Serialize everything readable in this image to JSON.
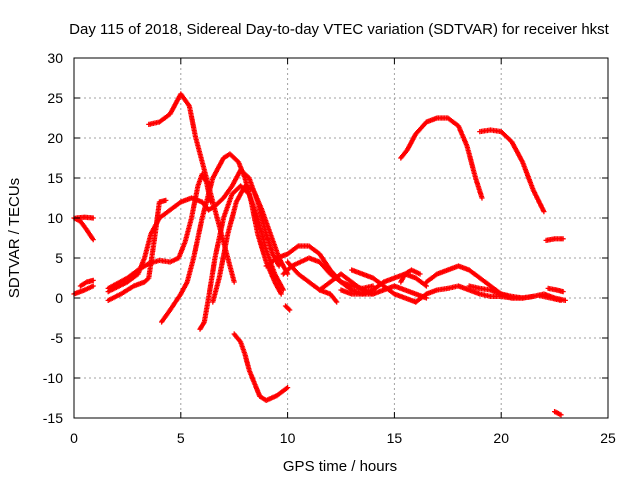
{
  "chart_data": {
    "type": "scatter",
    "title": "Day 115 of 2018, Sidereal Day-to-day VTEC variation (SDTVAR) for receiver hkst",
    "xlabel": "GPS time / hours",
    "ylabel": "SDTVAR / TECUs",
    "xlim": [
      0,
      25
    ],
    "ylim": [
      -15,
      30
    ],
    "xticks": [
      "0",
      "5",
      "10",
      "15",
      "20",
      "25"
    ],
    "yticks": [
      "-15",
      "-10",
      "-5",
      "0",
      "5",
      "10",
      "15",
      "20",
      "25",
      "30"
    ],
    "grid": true,
    "marker": "+",
    "color": "#ff0000",
    "series": [
      {
        "name": "s1",
        "points": [
          [
            0,
            10
          ],
          [
            0.3,
            9.6
          ],
          [
            0.6,
            8.5
          ],
          [
            0.9,
            7.3
          ]
        ]
      },
      {
        "name": "s2",
        "points": [
          [
            0.1,
            10
          ],
          [
            0.5,
            10.1
          ],
          [
            0.9,
            10
          ]
        ]
      },
      {
        "name": "s3",
        "points": [
          [
            0,
            0.5
          ],
          [
            0.5,
            1
          ],
          [
            0.9,
            1.5
          ]
        ]
      },
      {
        "name": "s4",
        "points": [
          [
            0.3,
            1.5
          ],
          [
            0.6,
            2
          ],
          [
            0.9,
            2.2
          ]
        ]
      },
      {
        "name": "s5",
        "points": [
          [
            3.5,
            21.7
          ],
          [
            4,
            22
          ],
          [
            4.5,
            23
          ],
          [
            5,
            25.5
          ],
          [
            5.4,
            24
          ],
          [
            5.7,
            20
          ],
          [
            6,
            17
          ],
          [
            6.3,
            14
          ],
          [
            6.6,
            11
          ],
          [
            6.9,
            8
          ],
          [
            7.2,
            5
          ],
          [
            7.5,
            2
          ]
        ]
      },
      {
        "name": "s6",
        "points": [
          [
            4.1,
            -3
          ],
          [
            4.5,
            -1.5
          ],
          [
            5,
            0.5
          ],
          [
            5.3,
            2
          ],
          [
            5.6,
            5
          ],
          [
            6,
            10
          ],
          [
            6.5,
            15
          ],
          [
            7,
            17.5
          ],
          [
            7.3,
            18
          ],
          [
            7.7,
            17
          ],
          [
            8,
            15
          ],
          [
            8.3,
            12
          ],
          [
            8.6,
            8
          ],
          [
            9,
            4.5
          ],
          [
            9.4,
            2
          ],
          [
            9.7,
            0.5
          ]
        ]
      },
      {
        "name": "s7",
        "points": [
          [
            1.6,
            -0.3
          ],
          [
            2.2,
            0.5
          ],
          [
            2.8,
            1.5
          ],
          [
            3.3,
            2
          ],
          [
            3.5,
            2.5
          ],
          [
            3.8,
            8
          ],
          [
            4,
            12
          ],
          [
            4.3,
            12.2
          ]
        ]
      },
      {
        "name": "s8",
        "points": [
          [
            1.6,
            1.2
          ],
          [
            2.5,
            2.5
          ],
          [
            3,
            3.5
          ],
          [
            3.5,
            4.3
          ],
          [
            4,
            4.7
          ],
          [
            4.5,
            4.5
          ],
          [
            4.9,
            5
          ],
          [
            5.2,
            7
          ],
          [
            5.5,
            10
          ],
          [
            5.8,
            14
          ],
          [
            6,
            15.5
          ],
          [
            6.2,
            14.5
          ],
          [
            6.4,
            12
          ]
        ]
      },
      {
        "name": "s9",
        "points": [
          [
            1.6,
            0.8
          ],
          [
            2.5,
            2
          ],
          [
            3,
            3
          ],
          [
            3.3,
            5
          ],
          [
            3.6,
            8
          ],
          [
            4,
            10
          ],
          [
            4.5,
            11
          ],
          [
            5,
            12
          ],
          [
            5.5,
            12.5
          ],
          [
            6,
            12
          ],
          [
            6.3,
            11
          ],
          [
            6.6,
            11.5
          ],
          [
            7,
            12.5
          ],
          [
            7.4,
            14
          ],
          [
            7.8,
            16
          ],
          [
            8.2,
            15
          ],
          [
            8.6,
            12
          ],
          [
            9,
            8
          ],
          [
            9.3,
            5.5
          ],
          [
            9.6,
            4
          ]
        ]
      },
      {
        "name": "s10",
        "points": [
          [
            5.9,
            -3.9
          ],
          [
            6.1,
            -3
          ],
          [
            6.3,
            0
          ],
          [
            6.6,
            5
          ],
          [
            7,
            10
          ],
          [
            7.4,
            13
          ],
          [
            7.8,
            14
          ],
          [
            8.2,
            13
          ],
          [
            8.6,
            10
          ],
          [
            9,
            6
          ],
          [
            9.4,
            3
          ],
          [
            9.8,
            1
          ]
        ]
      },
      {
        "name": "s11",
        "points": [
          [
            6.5,
            -0.5
          ],
          [
            6.8,
            2.5
          ],
          [
            7.2,
            8
          ],
          [
            7.6,
            12
          ],
          [
            8,
            14
          ],
          [
            8.4,
            13.5
          ],
          [
            8.8,
            11
          ],
          [
            9.2,
            8
          ],
          [
            9.6,
            5
          ],
          [
            10,
            3
          ]
        ]
      },
      {
        "name": "s12",
        "points": [
          [
            7.5,
            -4.5
          ],
          [
            7.8,
            -5.5
          ],
          [
            8,
            -7
          ],
          [
            8.2,
            -9
          ],
          [
            8.5,
            -11
          ],
          [
            8.7,
            -12.3
          ],
          [
            9,
            -12.8
          ],
          [
            9.5,
            -12.2
          ],
          [
            10,
            -11.2
          ]
        ]
      },
      {
        "name": "s13",
        "points": [
          [
            9.9,
            -1
          ],
          [
            10.1,
            -1.5
          ]
        ]
      },
      {
        "name": "s14",
        "points": [
          [
            9,
            4
          ],
          [
            9.5,
            5
          ],
          [
            10,
            5.5
          ],
          [
            10.5,
            6.5
          ],
          [
            11,
            6.5
          ],
          [
            11.5,
            5.5
          ],
          [
            12,
            3.5
          ],
          [
            12.5,
            2
          ],
          [
            13,
            1
          ],
          [
            13.5,
            0.5
          ],
          [
            14,
            0.5
          ]
        ]
      },
      {
        "name": "s15",
        "points": [
          [
            9.8,
            3
          ],
          [
            10.2,
            4
          ],
          [
            10.6,
            4.5
          ],
          [
            11,
            5
          ],
          [
            11.5,
            4.5
          ],
          [
            12,
            3
          ],
          [
            12.5,
            2
          ],
          [
            13,
            1.5
          ],
          [
            13.5,
            1.2
          ],
          [
            14,
            1.5
          ]
        ]
      },
      {
        "name": "s16",
        "points": [
          [
            10,
            4.5
          ],
          [
            10.5,
            3
          ],
          [
            11,
            2
          ],
          [
            11.5,
            1
          ],
          [
            12,
            0.5
          ],
          [
            12.3,
            -0.5
          ]
        ]
      },
      {
        "name": "s17",
        "points": [
          [
            11.5,
            1
          ],
          [
            12,
            2
          ],
          [
            12.5,
            3
          ],
          [
            13,
            2
          ],
          [
            13.5,
            1
          ],
          [
            14,
            0.5
          ],
          [
            14.5,
            1
          ],
          [
            15,
            1.5
          ],
          [
            15.5,
            1
          ],
          [
            16,
            0.5
          ],
          [
            16.5,
            0
          ]
        ]
      },
      {
        "name": "s18",
        "points": [
          [
            12.5,
            1
          ],
          [
            13,
            0.5
          ],
          [
            13.5,
            0.5
          ],
          [
            14,
            1
          ],
          [
            14.5,
            2
          ],
          [
            15,
            2.5
          ],
          [
            15.5,
            3
          ],
          [
            16,
            2.5
          ],
          [
            16.5,
            1.5
          ]
        ]
      },
      {
        "name": "s19",
        "points": [
          [
            13,
            3.5
          ],
          [
            13.5,
            3
          ],
          [
            14,
            2.5
          ],
          [
            14.5,
            1.5
          ],
          [
            15,
            0.5
          ],
          [
            15.5,
            0
          ],
          [
            16,
            -0.5
          ]
        ]
      },
      {
        "name": "s20",
        "points": [
          [
            15.3,
            2
          ],
          [
            15.5,
            3
          ],
          [
            15.8,
            3.5
          ],
          [
            16.2,
            3
          ]
        ]
      },
      {
        "name": "s21",
        "points": [
          [
            15.3,
            17.5
          ],
          [
            15.6,
            18.5
          ],
          [
            16,
            20.5
          ],
          [
            16.5,
            22
          ],
          [
            17,
            22.5
          ],
          [
            17.5,
            22.5
          ],
          [
            18,
            21.5
          ],
          [
            18.4,
            19
          ],
          [
            18.8,
            15
          ],
          [
            19.1,
            12.5
          ]
        ]
      },
      {
        "name": "s22",
        "points": [
          [
            16.5,
            2
          ],
          [
            17,
            3
          ],
          [
            17.5,
            3.5
          ],
          [
            18,
            4
          ],
          [
            18.5,
            3.5
          ],
          [
            19,
            2.5
          ],
          [
            19.5,
            1.5
          ],
          [
            20,
            0.5
          ],
          [
            20.5,
            0
          ],
          [
            21,
            0
          ]
        ]
      },
      {
        "name": "s23",
        "points": [
          [
            16,
            -0.5
          ],
          [
            16.5,
            0.5
          ],
          [
            17,
            1
          ],
          [
            17.5,
            1.2
          ],
          [
            18,
            1.5
          ],
          [
            18.5,
            1
          ],
          [
            19,
            0.5
          ],
          [
            19.5,
            0.2
          ],
          [
            20,
            0.2
          ],
          [
            20.5,
            0
          ],
          [
            21,
            0
          ],
          [
            21.5,
            0.2
          ]
        ]
      },
      {
        "name": "s24",
        "points": [
          [
            18.5,
            1.5
          ],
          [
            19,
            1.2
          ],
          [
            19.5,
            1
          ],
          [
            20,
            0.5
          ],
          [
            20.5,
            0.2
          ],
          [
            21,
            0
          ],
          [
            21.5,
            0.2
          ],
          [
            22,
            0.5
          ],
          [
            22.5,
            0
          ],
          [
            23,
            -0.3
          ]
        ]
      },
      {
        "name": "s25",
        "points": [
          [
            19,
            20.8
          ],
          [
            19.5,
            21
          ],
          [
            20,
            20.8
          ],
          [
            20.5,
            19.5
          ],
          [
            21,
            17
          ],
          [
            21.5,
            13.5
          ],
          [
            22,
            10.8
          ]
        ]
      },
      {
        "name": "s26",
        "points": [
          [
            21.8,
            0.3
          ],
          [
            22.3,
            0
          ],
          [
            22.8,
            -0.3
          ]
        ]
      },
      {
        "name": "s27",
        "points": [
          [
            22.1,
            7.2
          ],
          [
            22.5,
            7.4
          ],
          [
            22.9,
            7.4
          ]
        ]
      },
      {
        "name": "s28",
        "points": [
          [
            22.2,
            1.2
          ],
          [
            22.6,
            1
          ],
          [
            22.9,
            0.8
          ]
        ]
      },
      {
        "name": "s29",
        "points": [
          [
            22.5,
            -14.2
          ],
          [
            22.8,
            -14.6
          ]
        ]
      }
    ]
  }
}
